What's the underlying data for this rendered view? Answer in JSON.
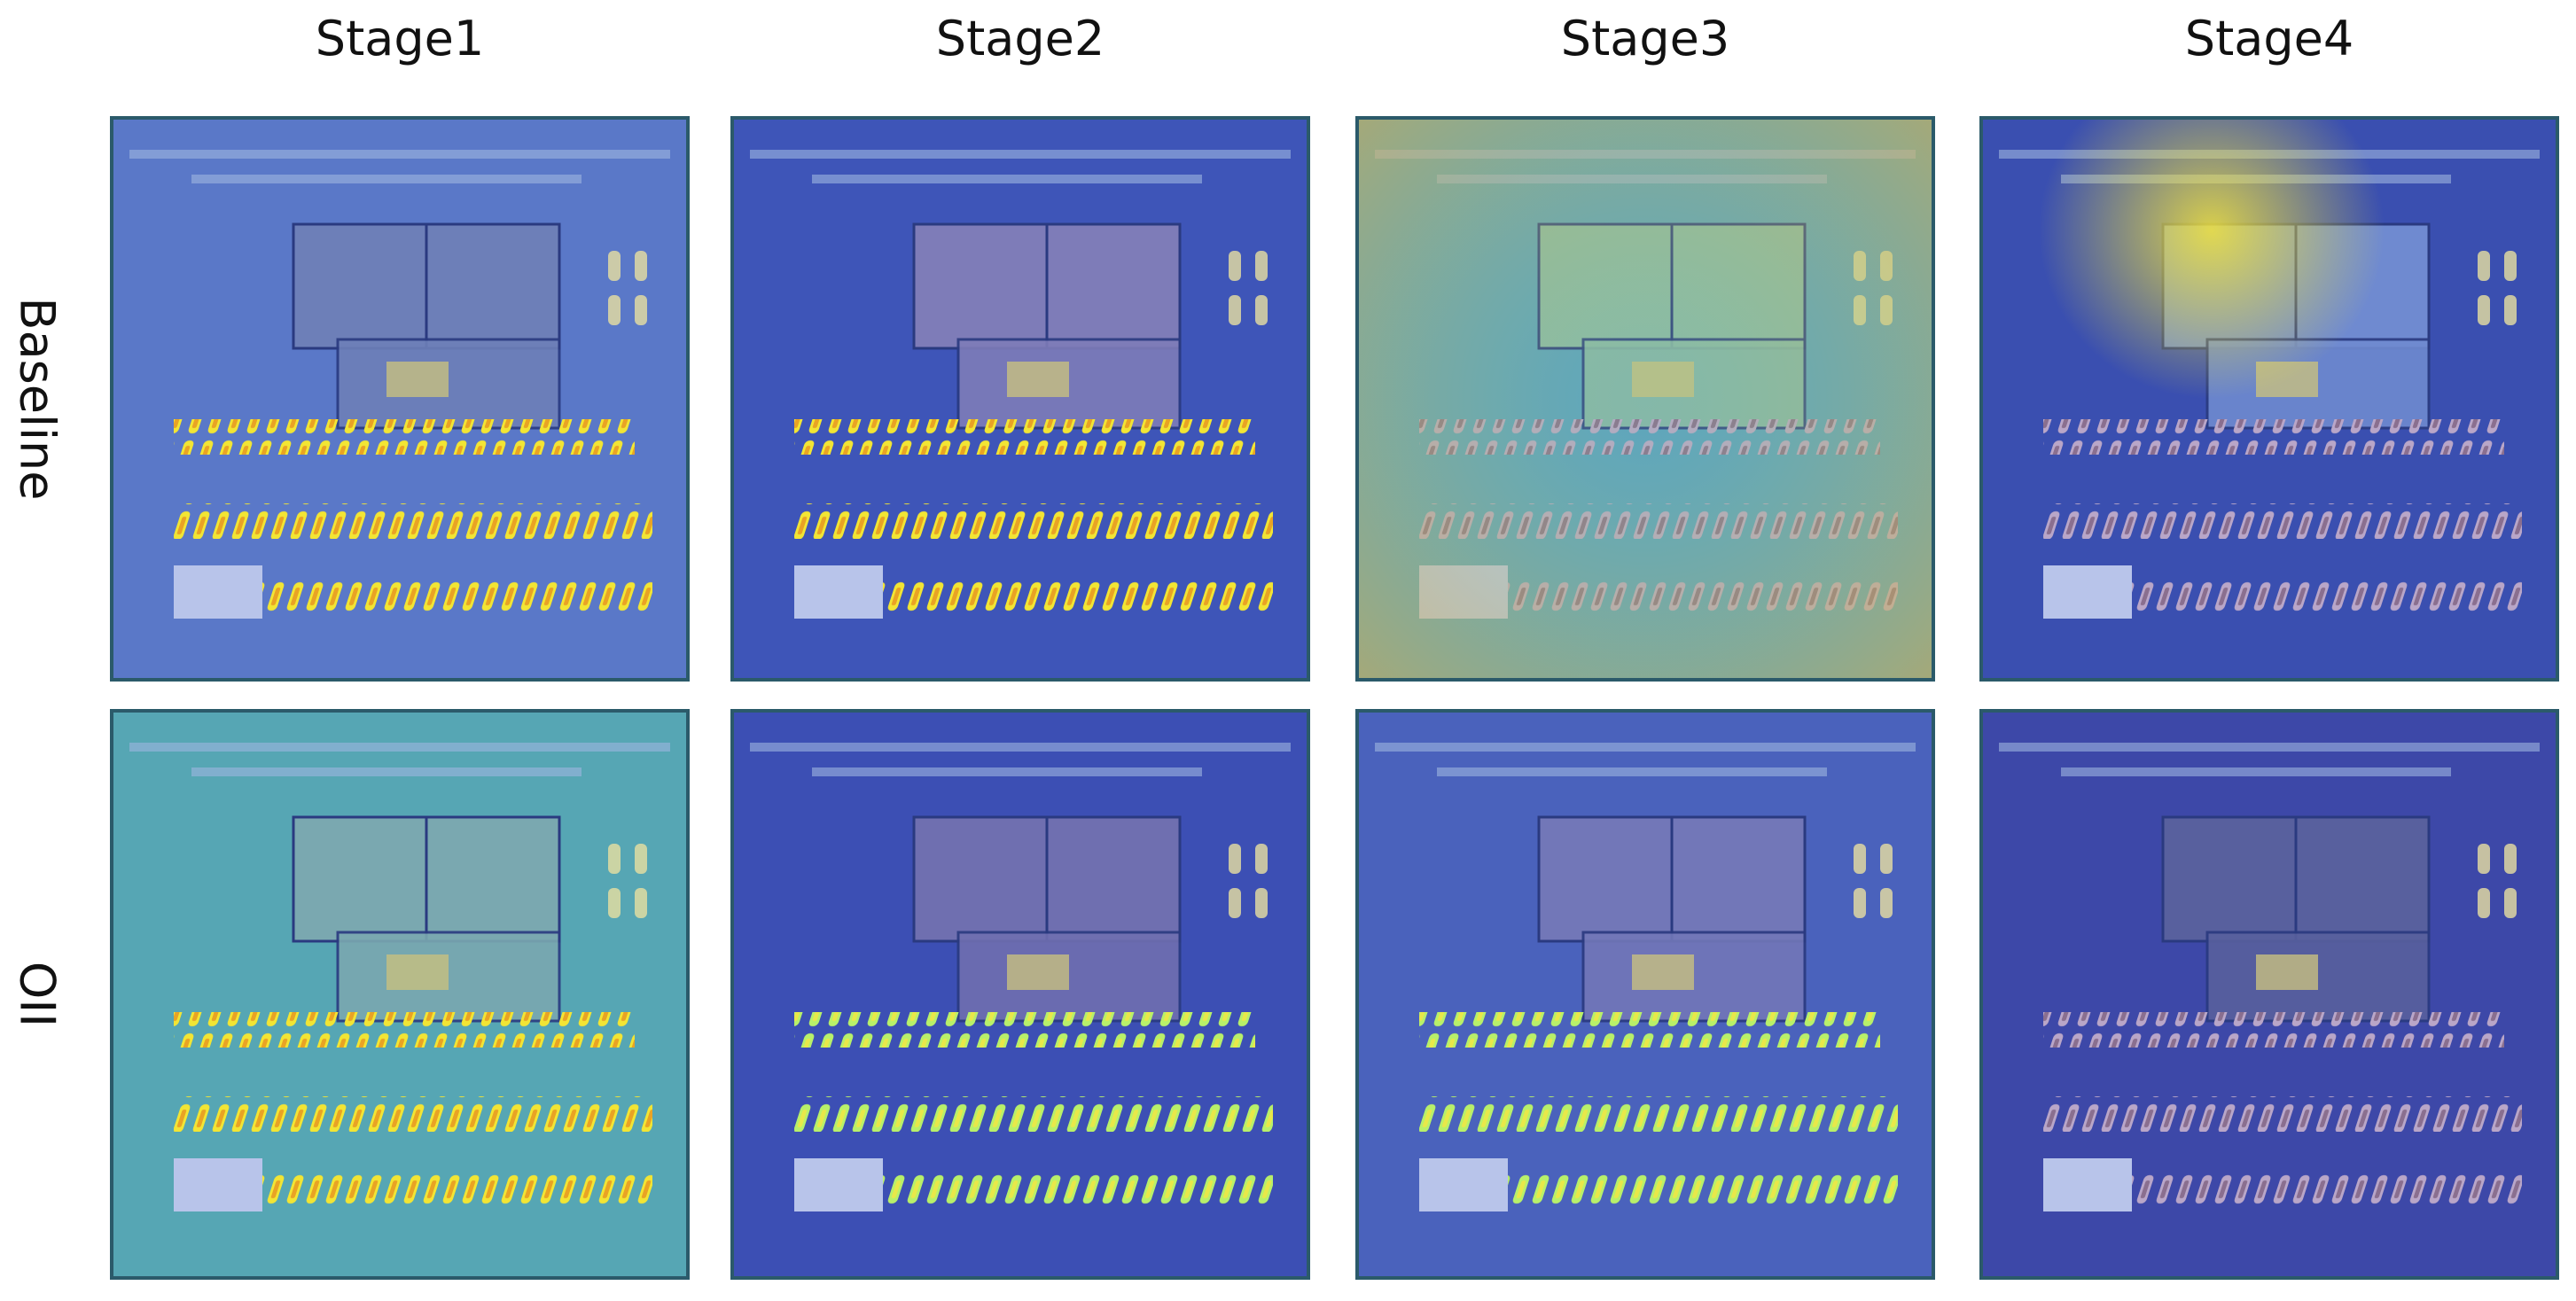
{
  "columns": [
    "Stage1",
    "Stage2",
    "Stage3",
    "Stage4"
  ],
  "rows": [
    "Baseline",
    "OII"
  ]
}
